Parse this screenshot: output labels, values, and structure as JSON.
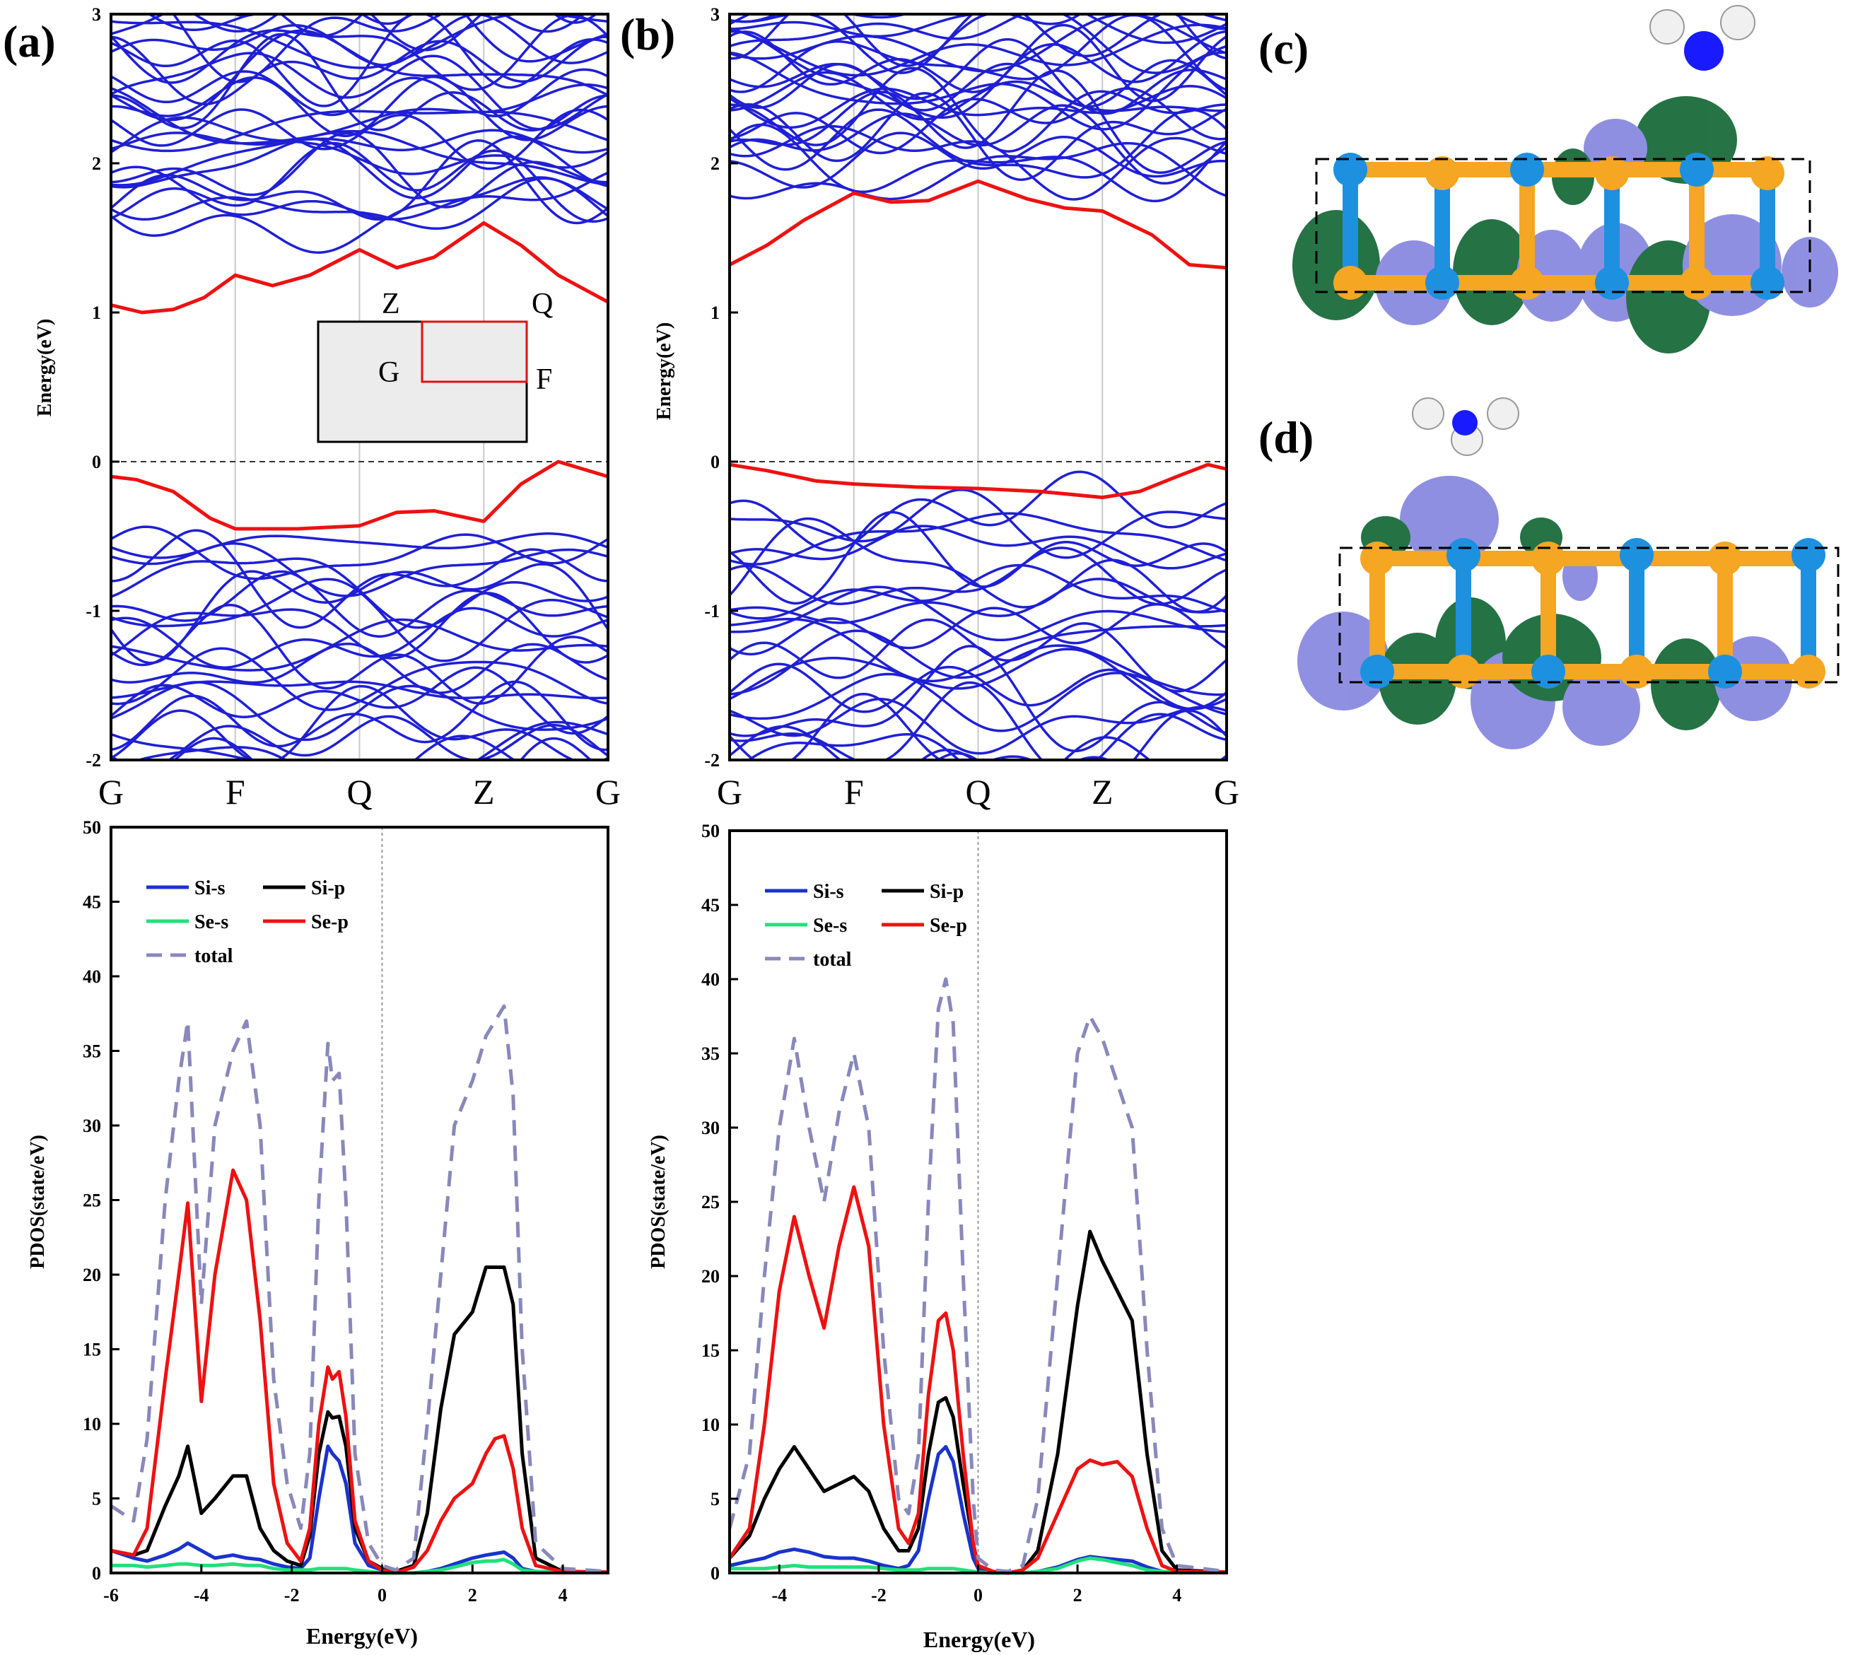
{
  "chart_data": [
    {
      "id": "a-bands",
      "panel": "(a)",
      "type": "line",
      "ylabel": "Energy(eV)",
      "ylim": [
        -2,
        3
      ],
      "yticks": [
        "-2",
        "-1",
        "0",
        "1",
        "2",
        "3"
      ],
      "kpoints": [
        "G",
        "F",
        "Q",
        "Z",
        "G"
      ],
      "kpos": [
        0,
        1,
        2,
        3,
        4
      ],
      "highlight_series": [
        {
          "name": "CBM band",
          "x": [
            0,
            0.25,
            0.5,
            0.75,
            1,
            1.3,
            1.6,
            2,
            2.3,
            2.6,
            3,
            3.3,
            3.6,
            4
          ],
          "y": [
            1.05,
            1.0,
            1.02,
            1.1,
            1.25,
            1.18,
            1.25,
            1.42,
            1.3,
            1.37,
            1.6,
            1.45,
            1.25,
            1.07
          ]
        },
        {
          "name": "VBM band",
          "x": [
            0,
            0.2,
            0.5,
            0.8,
            1,
            1.5,
            2,
            2.3,
            2.6,
            3,
            3.3,
            3.6,
            4
          ],
          "y": [
            -0.1,
            -0.12,
            -0.2,
            -0.38,
            -0.45,
            -0.45,
            -0.43,
            -0.34,
            -0.33,
            -0.4,
            -0.15,
            0.0,
            -0.1
          ]
        }
      ],
      "bz_inset": {
        "labels": [
          "Z",
          "Q",
          "G",
          "F"
        ]
      }
    },
    {
      "id": "b-bands",
      "panel": "(b)",
      "type": "line",
      "ylabel": "Energy(eV)",
      "ylim": [
        -2,
        3
      ],
      "yticks": [
        "-2",
        "-1",
        "0",
        "1",
        "2",
        "3"
      ],
      "kpoints": [
        "G",
        "F",
        "Q",
        "Z",
        "G"
      ],
      "kpos": [
        0,
        1,
        2,
        3,
        4
      ],
      "highlight_series": [
        {
          "name": "CBM band",
          "x": [
            0,
            0.3,
            0.6,
            1,
            1.3,
            1.6,
            2,
            2.4,
            2.7,
            3,
            3.4,
            3.7,
            4
          ],
          "y": [
            1.32,
            1.45,
            1.62,
            1.8,
            1.74,
            1.75,
            1.88,
            1.76,
            1.7,
            1.68,
            1.52,
            1.32,
            1.3
          ]
        },
        {
          "name": "VBM band",
          "x": [
            0,
            0.3,
            0.7,
            1,
            1.5,
            2,
            2.5,
            3,
            3.3,
            3.6,
            3.85,
            4
          ],
          "y": [
            -0.02,
            -0.06,
            -0.13,
            -0.15,
            -0.17,
            -0.18,
            -0.2,
            -0.24,
            -0.2,
            -0.1,
            -0.02,
            -0.05
          ]
        }
      ]
    },
    {
      "id": "a-pdos",
      "type": "line",
      "xlabel": "Energy(eV)",
      "ylabel": "PDOS(state/eV)",
      "xlim": [
        -6,
        5
      ],
      "ylim": [
        0,
        50
      ],
      "xticks": [
        "-6",
        "-4",
        "-2",
        "0",
        "2",
        "4"
      ],
      "yticks": [
        "0",
        "5",
        "10",
        "15",
        "20",
        "25",
        "30",
        "35",
        "40",
        "45",
        "50"
      ],
      "x": [
        -6,
        -5.5,
        -5.2,
        -4.8,
        -4.5,
        -4.3,
        -4.0,
        -3.7,
        -3.3,
        -3.0,
        -2.7,
        -2.4,
        -2.1,
        -1.8,
        -1.6,
        -1.4,
        -1.2,
        -1.1,
        -0.95,
        -0.8,
        -0.6,
        -0.3,
        0,
        0.3,
        0.7,
        1.0,
        1.3,
        1.6,
        2.0,
        2.3,
        2.5,
        2.7,
        2.9,
        3.1,
        3.4,
        4,
        5
      ],
      "series": [
        {
          "name": "Si-s",
          "color": "#1a33cc",
          "dash": false,
          "y": [
            1.5,
            1.0,
            0.8,
            1.2,
            1.6,
            2.0,
            1.5,
            1.0,
            1.2,
            1.0,
            0.9,
            0.6,
            0.4,
            0.3,
            1.0,
            5,
            8.5,
            8.0,
            7.5,
            6,
            2,
            0.5,
            0.2,
            0,
            0,
            0.1,
            0.3,
            0.6,
            1.0,
            1.2,
            1.3,
            1.4,
            1.0,
            0.3,
            0.1,
            0.05,
            0.05
          ]
        },
        {
          "name": "Si-p",
          "color": "#000000",
          "dash": false,
          "y": [
            1.5,
            1.2,
            1.5,
            4.5,
            6.5,
            8.5,
            4.0,
            5.0,
            6.5,
            6.5,
            3.0,
            1.5,
            0.8,
            0.5,
            2.5,
            8.0,
            10.8,
            10.4,
            10.5,
            8.5,
            3.0,
            0.8,
            0.3,
            0.1,
            0.5,
            4,
            11,
            16,
            17.5,
            20.5,
            20.5,
            20.5,
            18,
            8,
            1,
            0.1,
            0.05
          ]
        },
        {
          "name": "Se-s",
          "color": "#22e07a",
          "dash": false,
          "y": [
            0.5,
            0.5,
            0.4,
            0.5,
            0.6,
            0.6,
            0.5,
            0.5,
            0.6,
            0.5,
            0.5,
            0.3,
            0.2,
            0.2,
            0.2,
            0.3,
            0.3,
            0.3,
            0.3,
            0.3,
            0.2,
            0.1,
            0,
            0,
            0,
            0.1,
            0.2,
            0.4,
            0.7,
            0.8,
            0.8,
            0.9,
            0.6,
            0.2,
            0.1,
            0.05,
            0.05
          ]
        },
        {
          "name": "Se-p",
          "color": "#ee1111",
          "dash": false,
          "y": [
            1.5,
            1.2,
            3.0,
            13.0,
            20.0,
            24.8,
            11.5,
            20.0,
            27.0,
            25.0,
            17.0,
            6.0,
            2.0,
            0.8,
            3.0,
            10.0,
            13.8,
            13.0,
            13.5,
            10.5,
            3.5,
            0.8,
            0.2,
            0,
            0.4,
            1.5,
            3.5,
            5.0,
            6.0,
            8.0,
            9.0,
            9.2,
            7.0,
            3.0,
            0.5,
            0.1,
            0.05
          ]
        },
        {
          "name": "total",
          "color": "#8888bb",
          "dash": true,
          "y": [
            4.5,
            3.5,
            9,
            25,
            33,
            37,
            18,
            30,
            35,
            37,
            30,
            13,
            6,
            3,
            8,
            25,
            35.5,
            33,
            33.5,
            25,
            8,
            2,
            0.5,
            0.2,
            1,
            10,
            20,
            30,
            33,
            36,
            37,
            38,
            32,
            15,
            2,
            0.3,
            0.1
          ]
        }
      ],
      "legend": [
        {
          "label": "Si-s",
          "color": "#1a33cc",
          "dash": false
        },
        {
          "label": "Si-p",
          "color": "#000000",
          "dash": false
        },
        {
          "label": "Se-s",
          "color": "#22e07a",
          "dash": false
        },
        {
          "label": "Se-p",
          "color": "#ee1111",
          "dash": false
        },
        {
          "label": "total",
          "color": "#8888bb",
          "dash": true
        }
      ]
    },
    {
      "id": "b-pdos",
      "type": "line",
      "xlabel": "Energy(eV)",
      "ylabel": "PDOS(state/eV)",
      "xlim": [
        -5,
        5
      ],
      "ylim": [
        0,
        50
      ],
      "xticks": [
        "-4",
        "-2",
        "0",
        "2",
        "4"
      ],
      "yticks": [
        "0",
        "5",
        "10",
        "15",
        "20",
        "25",
        "30",
        "35",
        "40",
        "45",
        "50"
      ],
      "x": [
        -5,
        -4.6,
        -4.3,
        -4.0,
        -3.7,
        -3.4,
        -3.1,
        -2.8,
        -2.5,
        -2.2,
        -1.9,
        -1.6,
        -1.4,
        -1.2,
        -1.0,
        -0.8,
        -0.65,
        -0.5,
        -0.3,
        -0.1,
        0,
        0.3,
        0.6,
        0.9,
        1.2,
        1.6,
        2.0,
        2.25,
        2.5,
        2.8,
        3.1,
        3.4,
        3.7,
        4,
        5
      ],
      "series": [
        {
          "name": "Si-s",
          "color": "#1a33cc",
          "dash": false,
          "y": [
            0.5,
            0.8,
            1.0,
            1.4,
            1.6,
            1.4,
            1.1,
            1.0,
            1.0,
            0.8,
            0.5,
            0.3,
            0.5,
            1.5,
            5.0,
            8.0,
            8.5,
            7.5,
            4.0,
            1.0,
            0.3,
            0.1,
            0,
            0,
            0.1,
            0.4,
            0.9,
            1.1,
            1.0,
            0.9,
            0.8,
            0.4,
            0.1,
            0.05,
            0.05
          ]
        },
        {
          "name": "Si-p",
          "color": "#000000",
          "dash": false,
          "y": [
            1.0,
            2.5,
            5.0,
            7.0,
            8.5,
            7.0,
            5.5,
            6.0,
            6.5,
            5.5,
            3.0,
            1.5,
            1.5,
            3.0,
            8.0,
            11.5,
            11.8,
            10.5,
            6.0,
            2.0,
            0.5,
            0.1,
            0,
            0.2,
            1.5,
            8.0,
            18.0,
            23.0,
            21.0,
            19.0,
            17.0,
            8.0,
            1.5,
            0.2,
            0.05
          ]
        },
        {
          "name": "Se-s",
          "color": "#22e07a",
          "dash": false,
          "y": [
            0.3,
            0.3,
            0.3,
            0.4,
            0.5,
            0.4,
            0.4,
            0.4,
            0.4,
            0.4,
            0.3,
            0.2,
            0.2,
            0.2,
            0.3,
            0.3,
            0.3,
            0.3,
            0.2,
            0.1,
            0.05,
            0,
            0,
            0,
            0.1,
            0.3,
            0.8,
            1.0,
            0.9,
            0.7,
            0.5,
            0.2,
            0.1,
            0.05,
            0.05
          ]
        },
        {
          "name": "Se-p",
          "color": "#ee1111",
          "dash": false,
          "y": [
            1.0,
            3.0,
            10.0,
            19.0,
            24.0,
            20.0,
            16.5,
            22.0,
            26.0,
            22.0,
            10.0,
            3.0,
            2.0,
            4.0,
            12.0,
            17.0,
            17.5,
            15.0,
            8.0,
            2.0,
            0.5,
            0.1,
            0,
            0.2,
            1.0,
            4.0,
            7.0,
            7.6,
            7.3,
            7.5,
            6.5,
            3.0,
            0.5,
            0.1,
            0.05
          ]
        },
        {
          "name": "total",
          "color": "#8888bb",
          "dash": true,
          "y": [
            3.0,
            8.0,
            20.0,
            30.0,
            36.0,
            30.0,
            25.0,
            31.0,
            35.0,
            30.0,
            15.0,
            5.0,
            4.0,
            8.0,
            25.0,
            38.0,
            40.0,
            37.0,
            20.0,
            5.0,
            1.0,
            0.2,
            0.1,
            0.5,
            5.0,
            20.0,
            35.0,
            37.5,
            36.0,
            33.0,
            30.0,
            15.0,
            3.0,
            0.5,
            0.1
          ]
        }
      ],
      "legend": [
        {
          "label": "Si-s",
          "color": "#1a33cc",
          "dash": false
        },
        {
          "label": "Si-p",
          "color": "#000000",
          "dash": false
        },
        {
          "label": "Se-s",
          "color": "#22e07a",
          "dash": false
        },
        {
          "label": "Se-p",
          "color": "#ee1111",
          "dash": false
        },
        {
          "label": "total",
          "color": "#8888bb",
          "dash": true
        }
      ]
    }
  ],
  "structures": [
    {
      "panel": "(c)"
    },
    {
      "panel": "(d)"
    }
  ],
  "colors": {
    "band": "#1f1fd6",
    "highlight": "#ee1111",
    "si_atom": "#1e90e0",
    "se_atom": "#f5a623",
    "orbital_green": "#1a6b3c",
    "orbital_purple": "#8a8ae0",
    "n_atom": "#1a1aff",
    "h_atom": "#f0f0f0"
  }
}
